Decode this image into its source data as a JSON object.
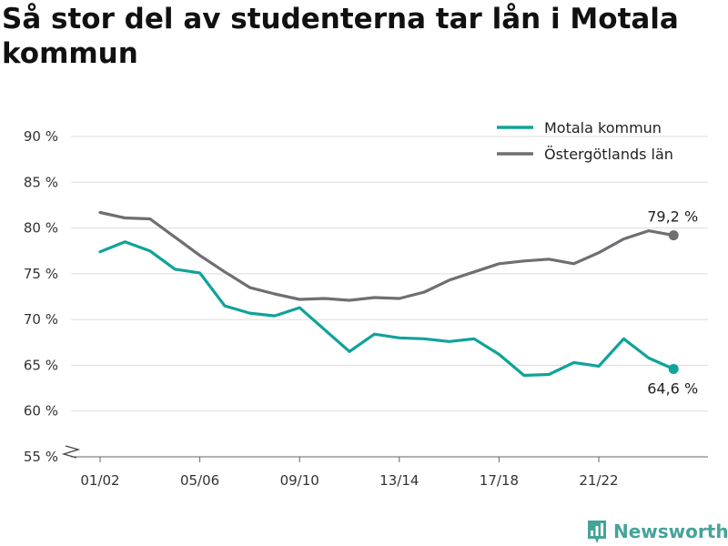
{
  "title": "Så stor del av studenterna tar lån i Motala kommun",
  "brand": {
    "name": "Newsworthy",
    "icon": "bar-chart-logo-icon"
  },
  "chart_data": {
    "type": "line",
    "title": "Så stor del av studenterna tar lån i Motala kommun",
    "xlabel": "",
    "ylabel": "",
    "x": [
      "01/02",
      "02/03",
      "03/04",
      "04/05",
      "05/06",
      "06/07",
      "07/08",
      "08/09",
      "09/10",
      "10/11",
      "11/12",
      "12/13",
      "13/14",
      "14/15",
      "15/16",
      "16/17",
      "17/18",
      "18/19",
      "19/20",
      "20/21",
      "21/22",
      "22/23",
      "23/24",
      "24/25"
    ],
    "x_tick_labels": [
      "01/02",
      "05/06",
      "09/10",
      "13/14",
      "17/18",
      "21/22"
    ],
    "y_ticks": [
      55,
      60,
      65,
      70,
      75,
      80,
      85,
      90
    ],
    "y_tick_labels": [
      "55 %",
      "60 %",
      "65 %",
      "70 %",
      "75 %",
      "80 %",
      "85 %",
      "90 %"
    ],
    "ylim": [
      55,
      90
    ],
    "y_axis_break": true,
    "grid": true,
    "legend_position": "top-right",
    "series": [
      {
        "name": "Motala kommun",
        "color": "#0fa399",
        "values": [
          77.4,
          78.5,
          77.5,
          75.5,
          75.1,
          71.5,
          70.7,
          70.4,
          71.3,
          68.9,
          66.5,
          68.4,
          68.0,
          67.9,
          67.6,
          67.9,
          66.2,
          63.9,
          64.0,
          65.3,
          64.9,
          67.9,
          65.8,
          64.6
        ],
        "end_label": "64,6 %"
      },
      {
        "name": "Östergötlands län",
        "color": "#6e6e73",
        "values": [
          81.7,
          81.1,
          81.0,
          79.0,
          77.0,
          75.2,
          73.5,
          72.8,
          72.2,
          72.3,
          72.1,
          72.4,
          72.3,
          73.0,
          74.3,
          75.2,
          76.1,
          76.4,
          76.6,
          76.1,
          77.3,
          78.8,
          79.7,
          79.2
        ],
        "end_label": "79,2 %"
      }
    ]
  }
}
